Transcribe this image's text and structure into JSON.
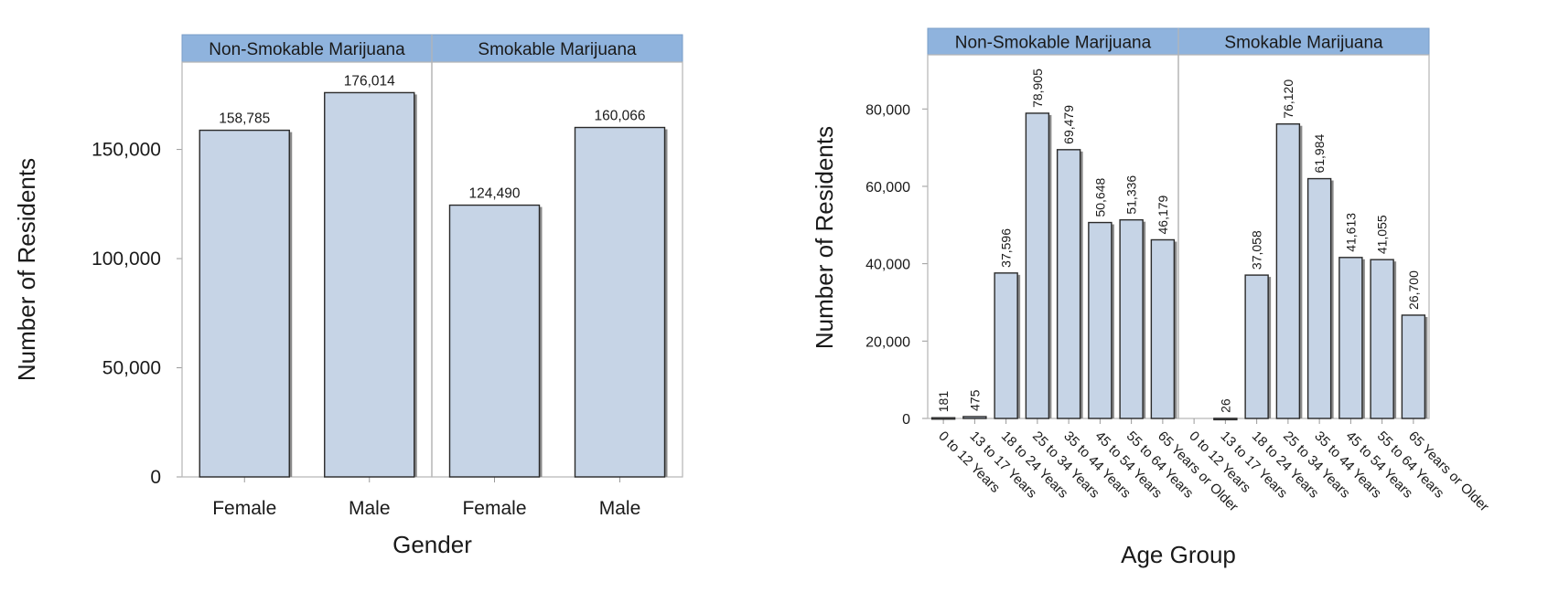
{
  "chart_data": [
    {
      "type": "bar",
      "xlabel": "Gender",
      "ylabel": "Number of Residents",
      "ylim": [
        0,
        190000
      ],
      "yticks": [
        0,
        50000,
        100000,
        150000
      ],
      "ytick_labels": [
        "0",
        "50,000",
        "100,000",
        "150,000"
      ],
      "panels": [
        {
          "title": "Non-Smokable Marijuana",
          "categories": [
            "Female",
            "Male"
          ],
          "values": [
            158785,
            176014
          ],
          "value_labels": [
            "158,785",
            "176,014"
          ]
        },
        {
          "title": "Smokable Marijuana",
          "categories": [
            "Female",
            "Male"
          ],
          "values": [
            124490,
            160066
          ],
          "value_labels": [
            "124,490",
            "160,066"
          ]
        }
      ]
    },
    {
      "type": "bar",
      "xlabel": "Age Group",
      "ylabel": "Number of Residents",
      "ylim": [
        0,
        94000
      ],
      "yticks": [
        0,
        20000,
        40000,
        60000,
        80000
      ],
      "ytick_labels": [
        "0",
        "20,000",
        "40,000",
        "60,000",
        "80,000"
      ],
      "panels": [
        {
          "title": "Non-Smokable Marijuana",
          "categories": [
            "0 to 12 Years",
            "13 to 17 Years",
            "18 to 24 Years",
            "25 to 34 Years",
            "35 to 44 Years",
            "45 to 54 Years",
            "55 to 64 Years",
            "65 Years or Older"
          ],
          "values": [
            181,
            475,
            37596,
            78905,
            69479,
            50648,
            51336,
            46179
          ],
          "value_labels": [
            "181",
            "475",
            "37,596",
            "78,905",
            "69,479",
            "50,648",
            "51,336",
            "46,179"
          ]
        },
        {
          "title": "Smokable Marijuana",
          "categories": [
            "0 to 12 Years",
            "13 to 17 Years",
            "18 to 24 Years",
            "25 to 34 Years",
            "35 to 44 Years",
            "45 to 54 Years",
            "55 to 64 Years",
            "65 Years or Older"
          ],
          "values": [
            0,
            26,
            37058,
            76120,
            61984,
            41613,
            41055,
            26700
          ],
          "value_labels": [
            "",
            "26",
            "37,058",
            "76,120",
            "61,984",
            "41,613",
            "41,055",
            "26,700"
          ]
        }
      ]
    }
  ]
}
